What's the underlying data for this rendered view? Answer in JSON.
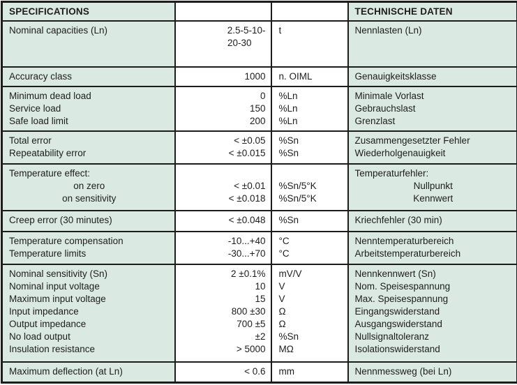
{
  "header": {
    "left": "SPECIFICATIONS",
    "right": "TECHNISCHE DATEN"
  },
  "colors": {
    "cell_teal": "#dbe9e3",
    "border": "#1c1c1c",
    "text": "#1d1d1d"
  },
  "rows": [
    {
      "height": 66,
      "en": [
        "Nominal capacities (Ln)"
      ],
      "value": [
        "2.5-5-10-",
        {
          "text": "20-30",
          "style": "wrap"
        }
      ],
      "unit": [
        "t"
      ],
      "de": [
        "Nennlasten (Ln)"
      ]
    },
    {
      "height": 28,
      "en": [
        "Accuracy class"
      ],
      "value": [
        "1000"
      ],
      "unit": [
        "n. OIML"
      ],
      "de": [
        "Genauigkeitsklasse"
      ]
    },
    {
      "height": 64,
      "en": [
        "Minimum dead load",
        "Service load",
        "Safe load limit"
      ],
      "value": [
        "0",
        "150",
        "200"
      ],
      "unit": [
        "%Ln",
        "%Ln",
        "%Ln"
      ],
      "de": [
        "Minimale Vorlast",
        "Gebrauchslast",
        "Grenzlast"
      ]
    },
    {
      "height": 47,
      "en": [
        "Total error",
        "Repeatability error"
      ],
      "value": [
        "< ±0.05",
        "< ±0.015"
      ],
      "unit": [
        "%Sn",
        "%Sn"
      ],
      "de": [
        "Zusammengesetzter Fehler",
        "Wiederholgenauigkeit"
      ]
    },
    {
      "height": 67,
      "en": [
        "Temperature effect:",
        {
          "text": "on zero",
          "style": "center"
        },
        {
          "text": "on sensitivity",
          "style": "center"
        }
      ],
      "value": [
        "",
        "< ±0.01",
        "< ±0.018"
      ],
      "unit": [
        "",
        "%Sn/5°K",
        "%Sn/5°K"
      ],
      "de": [
        "Temperaturfehler:",
        {
          "text": "Nullpunkt",
          "style": "center"
        },
        {
          "text": "Kennwert",
          "style": "center"
        }
      ]
    },
    {
      "height": 30,
      "en": [
        "Creep error (30 minutes)"
      ],
      "value": [
        "< ±0.048"
      ],
      "unit": [
        "%Sn"
      ],
      "de": [
        "Kriechfehler (30 min)"
      ]
    },
    {
      "height": 47,
      "en": [
        "Temperature compensation",
        "Temperature limits"
      ],
      "value": [
        "-10...+40",
        "-30...+70"
      ],
      "unit": [
        "°C",
        "°C"
      ],
      "de": [
        "Nenntemperaturbereich",
        "Arbeitstemperaturbereich"
      ]
    },
    {
      "height": 140,
      "en": [
        "Nominal sensitivity (Sn)",
        "Nominal input voltage",
        "Maximum input voltage",
        "Input impedance",
        "Output impedance",
        "No load output",
        "Insulation resistance"
      ],
      "value": [
        "2 ±0.1%",
        "10",
        "15",
        "800 ±30",
        "700 ±5",
        "±2",
        "> 5000"
      ],
      "unit": [
        "mV/V",
        "V",
        "V",
        "Ω",
        "Ω",
        "%Sn",
        "MΩ"
      ],
      "de": [
        "Nennkennwert (Sn)",
        "Nom. Speisespannung",
        "Max. Speisespannung",
        "Eingangswiderstand",
        "Ausgangswiderstand",
        "Nullsignaltoleranz",
        "Isolationswiderstand"
      ]
    },
    {
      "height": 30,
      "en": [
        "Maximum deflection (at Ln)"
      ],
      "value": [
        "< 0.6"
      ],
      "unit": [
        "mm"
      ],
      "de": [
        "Nennmessweg (bei Ln)"
      ]
    }
  ]
}
